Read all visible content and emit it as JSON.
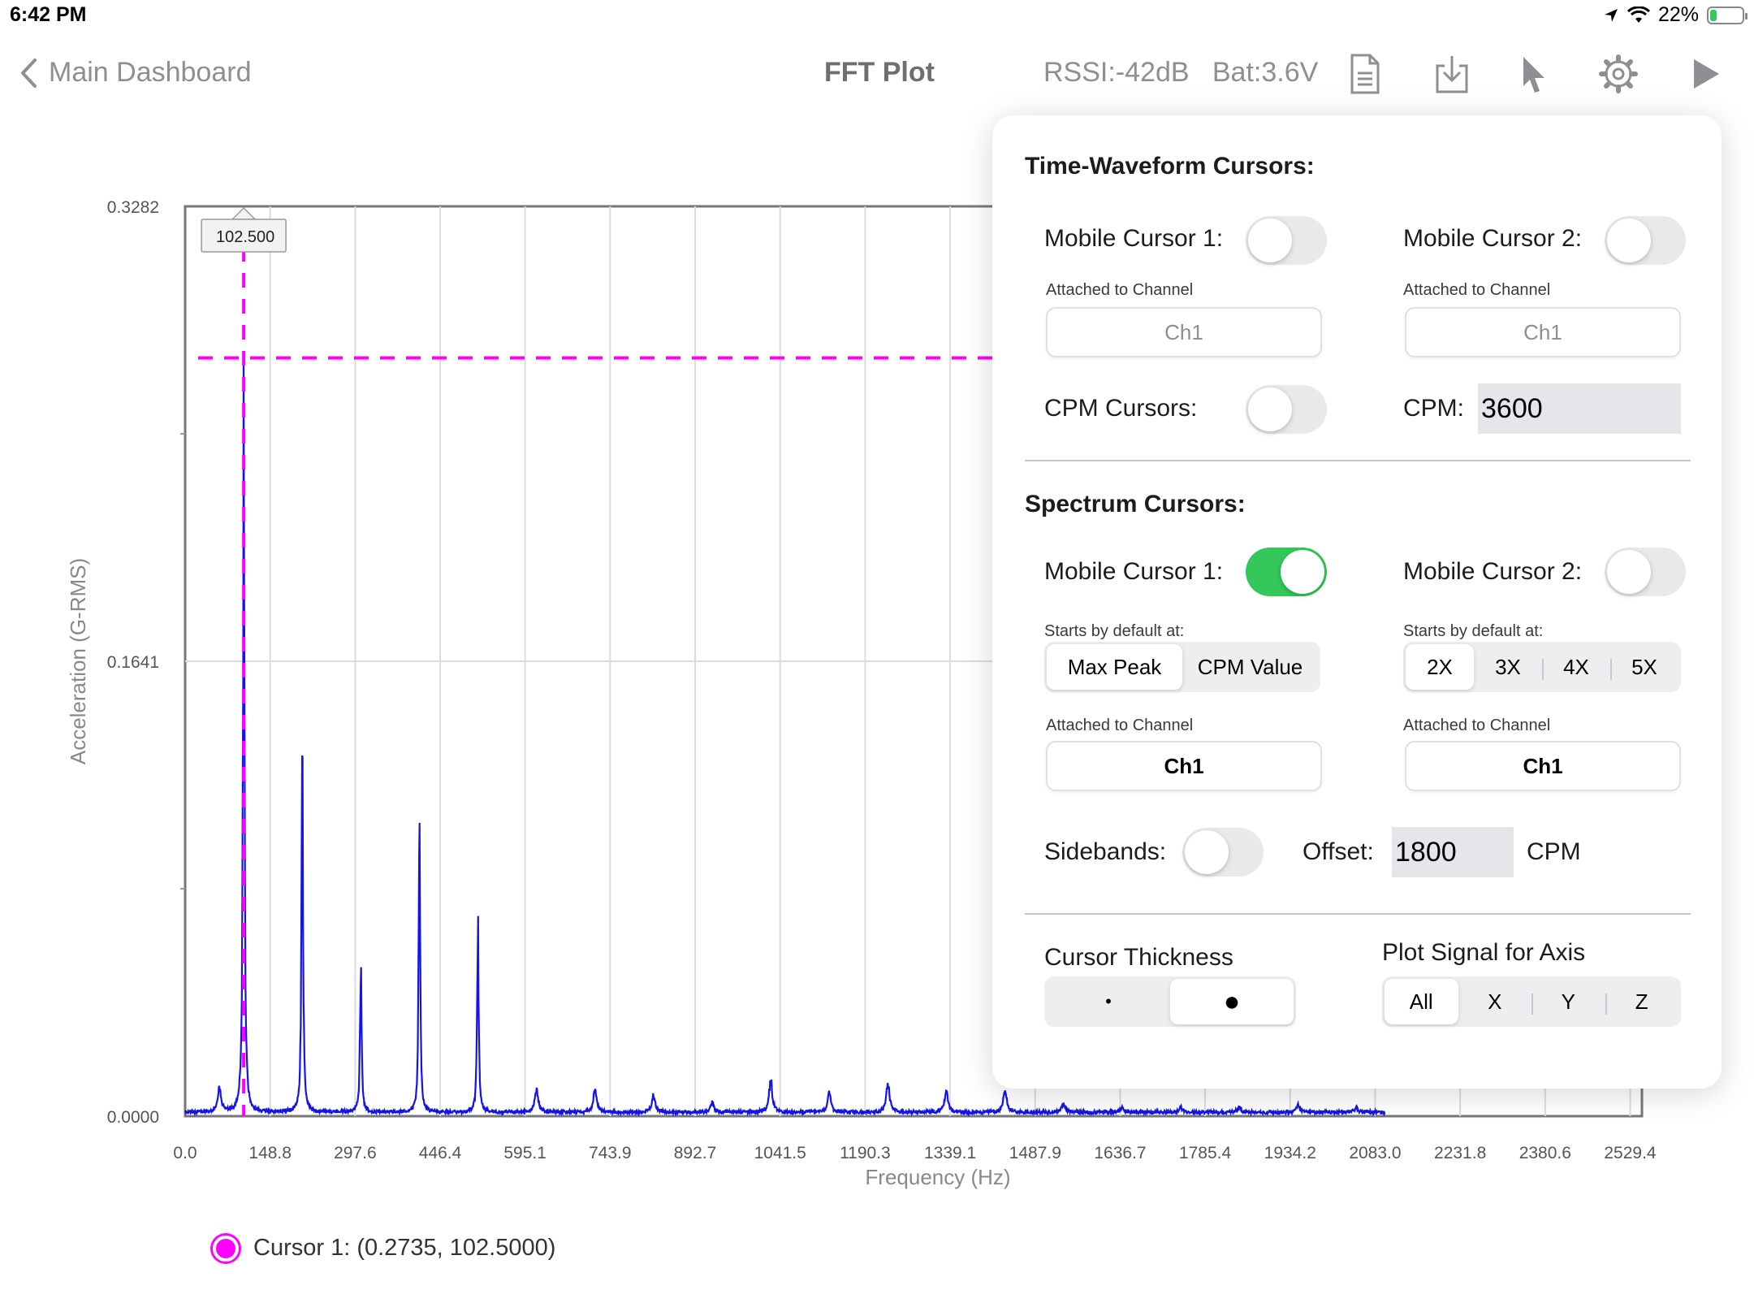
{
  "status_bar": {
    "time": "6:42 PM",
    "battery_percent": "22%",
    "battery_level": 0.22
  },
  "nav": {
    "back_label": "Main Dashboard",
    "title": "FFT Plot",
    "status": "RSSI:-42dB   Bat:3.6V",
    "icons": [
      "document-icon",
      "download-icon",
      "cursor-pointer-icon",
      "gear-icon",
      "play-icon"
    ]
  },
  "chart_data": {
    "type": "line",
    "xlabel": "Frequency (Hz)",
    "ylabel": "Acceleration (G-RMS)",
    "x_ticks": [
      "0.0",
      "148.8",
      "297.6",
      "446.4",
      "595.1",
      "743.9",
      "892.7",
      "1041.5",
      "1190.3",
      "1339.1",
      "1487.9",
      "1636.7",
      "1785.4",
      "1934.2",
      "2083.0",
      "2231.8",
      "2380.6",
      "2529.4"
    ],
    "y_ticks": [
      "0.3282",
      "0.1641",
      "0.0000"
    ],
    "xlim": [
      0,
      2550
    ],
    "ylim": [
      0,
      0.3282
    ],
    "series_color": "#1414e6",
    "peaks": [
      {
        "x": 60,
        "y": 0.01
      },
      {
        "x": 102.5,
        "y": 0.2735
      },
      {
        "x": 205,
        "y": 0.148
      },
      {
        "x": 307.5,
        "y": 0.063
      },
      {
        "x": 410,
        "y": 0.115
      },
      {
        "x": 512.5,
        "y": 0.077
      },
      {
        "x": 615,
        "y": 0.009
      },
      {
        "x": 717.5,
        "y": 0.009
      },
      {
        "x": 820,
        "y": 0.007
      },
      {
        "x": 922.5,
        "y": 0.004
      },
      {
        "x": 1025,
        "y": 0.013
      },
      {
        "x": 1127.5,
        "y": 0.008
      },
      {
        "x": 1230,
        "y": 0.012
      },
      {
        "x": 1332.5,
        "y": 0.009
      },
      {
        "x": 1435,
        "y": 0.009
      },
      {
        "x": 1537.5,
        "y": 0.004
      },
      {
        "x": 1640,
        "y": 0.002
      },
      {
        "x": 1742.5,
        "y": 0.002
      },
      {
        "x": 1845,
        "y": 0.002
      },
      {
        "x": 1947.5,
        "y": 0.003
      },
      {
        "x": 2050,
        "y": 0.002
      }
    ],
    "cursor": {
      "x": 102.5,
      "y": 0.2735,
      "color": "#ff00ff",
      "tooltip": "102.500"
    },
    "grid": true
  },
  "legend": {
    "cursor1": "Cursor 1: (0.2735, 102.5000)"
  },
  "popover": {
    "time_waveform": {
      "title": "Time-Waveform Cursors:",
      "mobile_cursor_1": {
        "label": "Mobile Cursor 1:",
        "on": false
      },
      "mobile_cursor_2": {
        "label": "Mobile Cursor 2:",
        "on": false
      },
      "attached_label": "Attached to Channel",
      "channel_1": "Ch1",
      "channel_2": "Ch1",
      "cpm_cursors": {
        "label": "CPM Cursors:",
        "on": false
      },
      "cpm_label": "CPM:",
      "cpm_value": "3600"
    },
    "spectrum": {
      "title": "Spectrum Cursors:",
      "mobile_cursor_1": {
        "label": "Mobile Cursor 1:",
        "on": true
      },
      "mobile_cursor_2": {
        "label": "Mobile Cursor 2:",
        "on": false
      },
      "starts_label": "Starts by default at:",
      "start_options_1": [
        "Max Peak",
        "CPM Value"
      ],
      "start_selected_1": "Max Peak",
      "start_options_2": [
        "2X",
        "3X",
        "4X",
        "5X"
      ],
      "start_selected_2": "2X",
      "attached_label": "Attached to Channel",
      "channel_1": "Ch1",
      "channel_2": "Ch1",
      "sidebands": {
        "label": "Sidebands:",
        "on": false
      },
      "offset_label": "Offset:",
      "offset_value": "1800",
      "offset_unit": "CPM"
    },
    "thickness": {
      "title": "Cursor Thickness",
      "options": [
        "•",
        "●"
      ],
      "selected": "●"
    },
    "axis": {
      "title": "Plot Signal for Axis",
      "options": [
        "All",
        "X",
        "Y",
        "Z"
      ],
      "selected": "All"
    }
  }
}
